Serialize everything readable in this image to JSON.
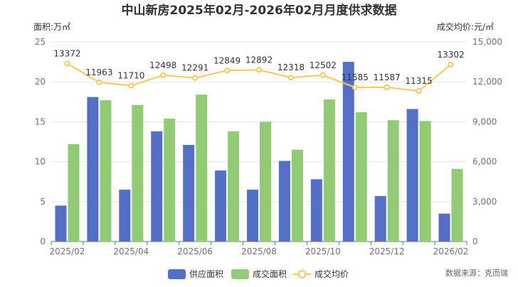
{
  "chart_data": {
    "type": "bar",
    "title": "中山新房2025年02月-2026年02月月度供求数据",
    "y_left_label": "面积:万㎡",
    "y_right_label": "成交均价:元/㎡",
    "y_left_ticks": [
      "0",
      "5",
      "10",
      "15",
      "20",
      "25"
    ],
    "y_right_ticks": [
      "0",
      "3,000",
      "6,000",
      "9,000",
      "12,000",
      "15,000"
    ],
    "ylim_left": [
      0,
      25
    ],
    "ylim_right": [
      0,
      15000
    ],
    "categories": [
      "2025/02",
      "2025/03",
      "2025/04",
      "2025/05",
      "2025/06",
      "2025/07",
      "2025/08",
      "2025/09",
      "2025/10",
      "2025/11",
      "2025/12",
      "2026/01",
      "2026/02"
    ],
    "x_tick_labels": [
      "2025/02",
      "",
      "2025/04",
      "",
      "2025/06",
      "",
      "2025/08",
      "",
      "2025/10",
      "",
      "2025/12",
      "",
      "2026/02"
    ],
    "series": [
      {
        "name": "供应面积",
        "kind": "bar",
        "axis": "left",
        "color": "#5470c6",
        "values": [
          4.5,
          18.1,
          6.5,
          13.8,
          12.1,
          8.9,
          6.5,
          10.1,
          7.8,
          22.5,
          5.7,
          16.6,
          3.5
        ]
      },
      {
        "name": "成交面积",
        "kind": "bar",
        "axis": "left",
        "color": "#91cc75",
        "values": [
          12.2,
          17.7,
          17.1,
          15.4,
          18.4,
          13.8,
          15.0,
          11.5,
          17.8,
          16.2,
          15.2,
          15.1,
          9.1
        ]
      },
      {
        "name": "成交均价",
        "kind": "line",
        "axis": "right",
        "color": "#fac858",
        "values": [
          13372,
          11963,
          11710,
          12498,
          12291,
          12849,
          12892,
          12318,
          12502,
          11585,
          11587,
          11315,
          13302
        ]
      }
    ],
    "legend": [
      "供应面积",
      "成交面积",
      "成交均价"
    ],
    "legend_position": "bottom",
    "grid": true
  },
  "footer": {
    "source": "数据来源：克而瑞"
  }
}
